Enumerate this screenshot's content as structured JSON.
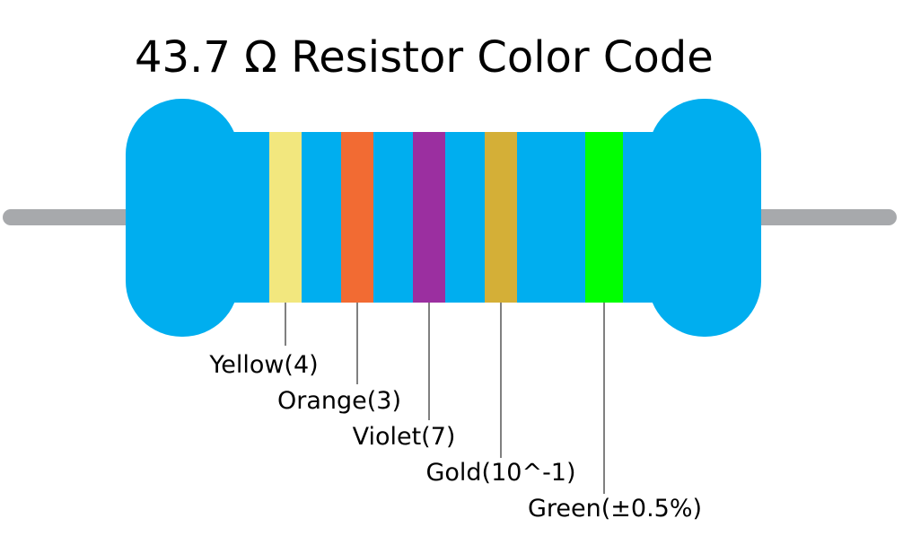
{
  "title": "43.7 Ω Resistor Color Code",
  "bands": [
    {
      "label": "Yellow(4)",
      "color": "#f2e77e"
    },
    {
      "label": "Orange(3)",
      "color": "#f26b33"
    },
    {
      "label": "Violet(7)",
      "color": "#9b2fa0"
    },
    {
      "label": "Gold(10^-1)",
      "color": "#d4af37"
    },
    {
      "label": "Green(±0.5%)",
      "color": "#00ff00"
    }
  ]
}
